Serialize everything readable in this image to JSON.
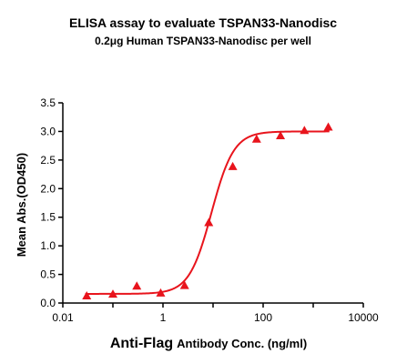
{
  "chart_data": {
    "type": "scatter",
    "title": "ELISA assay to evaluate TSPAN33-Nanodisc",
    "subtitle": "0.2μg Human TSPAN33-Nanodisc per well",
    "xlabel_main": "Anti-Flag",
    "xlabel_sub": "Antibody Conc. (ng/ml)",
    "ylabel": "Mean Abs.(OD450)",
    "x_scale": "log",
    "xlim": [
      0.01,
      10000
    ],
    "ylim": [
      0,
      3.5
    ],
    "x_ticks": [
      0.01,
      1,
      100,
      10000
    ],
    "x_tick_labels": [
      "0.01",
      "1",
      "100",
      "10000"
    ],
    "y_ticks": [
      0,
      0.5,
      1,
      1.5,
      2,
      2.5,
      3,
      3.5
    ],
    "y_tick_labels": [
      "0.0",
      "0.5",
      "1.0",
      "1.5",
      "2.0",
      "2.5",
      "3.0",
      "3.5"
    ],
    "color": "#e8141c",
    "marker": "triangle",
    "fit": "four-parameter logistic",
    "series": [
      {
        "x": [
          0.03,
          0.1,
          0.3,
          0.9,
          2.7,
          8.2,
          24.7,
          74,
          222,
          667,
          2000
        ],
        "y": [
          0.12,
          0.15,
          0.29,
          0.17,
          0.3,
          1.4,
          2.38,
          2.86,
          2.92,
          3.01,
          3.07
        ]
      }
    ]
  }
}
